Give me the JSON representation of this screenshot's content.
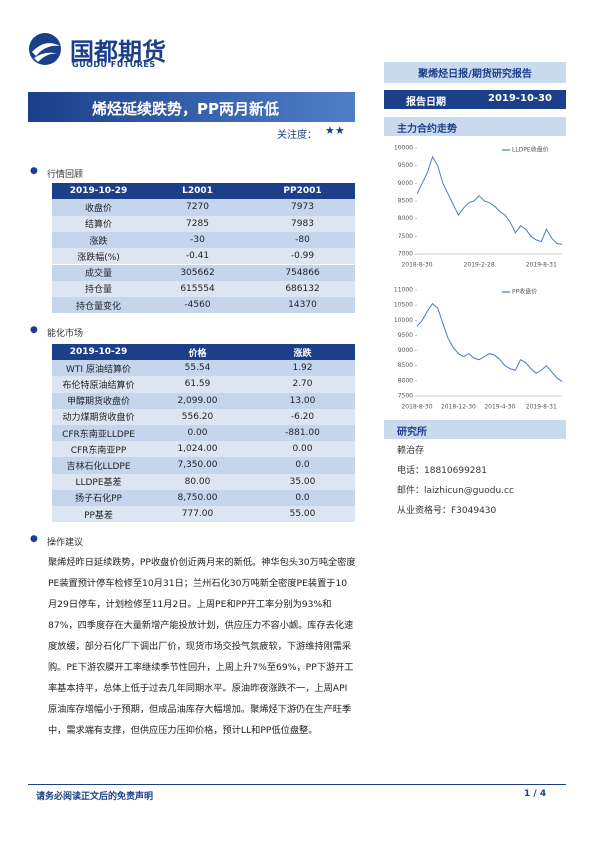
{
  "header": {
    "logo_cn": "国都期货",
    "logo_en": "GUODU FUTURES",
    "report_type": "聚烯烃日报/期货研究报告",
    "date_label": "报告日期",
    "date": "2019-10-30"
  },
  "title": "烯烃延续跌势，PP两月新低",
  "attention": {
    "label": "关注度：",
    "stars": "★★"
  },
  "section1": {
    "heading": "行情回顾",
    "table": {
      "header": [
        "2019-10-29",
        "L2001",
        "PP2001"
      ],
      "rows": [
        [
          "收盘价",
          "7270",
          "7973"
        ],
        [
          "结算价",
          "7285",
          "7983"
        ],
        [
          "涨跌",
          "-30",
          "-80"
        ],
        [
          "涨跌幅(%)",
          "-0.41",
          "-0.99"
        ],
        [
          "成交量",
          "305662",
          "754866"
        ],
        [
          "持仓量",
          "615554",
          "686132"
        ],
        [
          "持仓量变化",
          "-4560",
          "14370"
        ]
      ]
    }
  },
  "section2": {
    "heading": "能化市场",
    "table": {
      "header": [
        "2019-10-29",
        "价格",
        "涨跌"
      ],
      "rows": [
        [
          "WTI 原油结算价",
          "55.54",
          "1.92"
        ],
        [
          "布伦特原油结算价",
          "61.59",
          "2.70"
        ],
        [
          "甲醇期货收盘价",
          "2,099.00",
          "13.00"
        ],
        [
          "动力煤期货收盘价",
          "556.20",
          "-6.20"
        ],
        [
          "CFR东南亚LLDPE",
          "0.00",
          "-881.00"
        ],
        [
          "CFR东南亚PP",
          "1,024.00",
          "0.00"
        ],
        [
          "吉林石化LLDPE",
          "7,350.00",
          "0.0"
        ],
        [
          "LLDPE基差",
          "80.00",
          "35.00"
        ],
        [
          "扬子石化PP",
          "8,750.00",
          "0.0"
        ],
        [
          "PP基差",
          "777.00",
          "55.00"
        ]
      ]
    }
  },
  "section3": {
    "heading": "操作建议",
    "text": "聚烯烃昨日延续跌势，PP收盘价创近两月来的新低。神华包头30万吨全密度PE装置预计停车检修至10月31日；兰州石化30万吨新全密度PE装置于10月29日停车，计划检修至11月2日。上周PE和PP开工率分别为93%和87%，四季度存在大量新增产能投放计划，供应压力不容小觑。库存去化速度放缓，部分石化厂下调出厂价，现货市场交投气氛疲软，下游维持刚需采购。PE下游农膜开工率继续季节性回升，上周上升7%至69%，PP下游开工率基本持平，总体上低于过去几年同期水平。原油昨夜涨跌不一，上周API原油库存增幅小于预期，但成品油库存大幅增加。聚烯烃下游仍在生产旺季中，需求端有支撑，但供应压力压抑价格，预计LL和PP低位盘整。"
  },
  "side": {
    "chart_heading": "主力合约走势",
    "research_heading": "研究所",
    "analyst": "赖治存",
    "phone": "电话：18810699281",
    "email": "邮件：laizhicun@guodu.cc",
    "license": "从业资格号：F3049430"
  },
  "chart_data": [
    {
      "type": "line",
      "categories": [
        "2018-8-30",
        null,
        null,
        null,
        null,
        null,
        null,
        null,
        null,
        null,
        null,
        null,
        "2019-2-28",
        null,
        null,
        null,
        null,
        null,
        null,
        null,
        null,
        null,
        null,
        null,
        "2019-8-31",
        null,
        null,
        null,
        null
      ],
      "series": [
        {
          "name": "LLDPE收盘价",
          "color": "#4a7cc4",
          "values": [
            8700,
            9000,
            9300,
            9750,
            9500,
            9000,
            8700,
            8400,
            8100,
            8300,
            8450,
            8500,
            8650,
            8500,
            8450,
            8350,
            8200,
            8100,
            7900,
            7600,
            7800,
            7700,
            7500,
            7400,
            7350,
            7700,
            7450,
            7300,
            7270
          ]
        }
      ],
      "ylim": [
        7000,
        10000
      ],
      "yticks": [
        7000,
        7500,
        8000,
        8500,
        9000,
        9500,
        10000
      ]
    },
    {
      "type": "line",
      "categories": [
        "2018-8-30",
        null,
        null,
        null,
        null,
        null,
        null,
        null,
        "2018-12-30",
        null,
        null,
        null,
        null,
        null,
        null,
        null,
        "2019-4-30",
        null,
        null,
        null,
        null,
        null,
        null,
        null,
        "2019-8-31",
        null,
        null,
        null,
        null
      ],
      "series": [
        {
          "name": "PP收盘价",
          "color": "#4a7cc4",
          "values": [
            9800,
            10000,
            10300,
            10550,
            10400,
            9900,
            9400,
            9100,
            8900,
            8800,
            8900,
            8750,
            8700,
            8800,
            8900,
            8850,
            8700,
            8500,
            8400,
            8350,
            8700,
            8600,
            8400,
            8250,
            8350,
            8500,
            8300,
            8100,
            7973
          ]
        }
      ],
      "ylim": [
        7500,
        11000
      ],
      "yticks": [
        7500,
        8000,
        8500,
        9000,
        9500,
        10000,
        10500,
        11000
      ]
    }
  ],
  "footer": {
    "disclaimer": "请务必阅读正文后的免责声明",
    "page": "1 / 4"
  }
}
